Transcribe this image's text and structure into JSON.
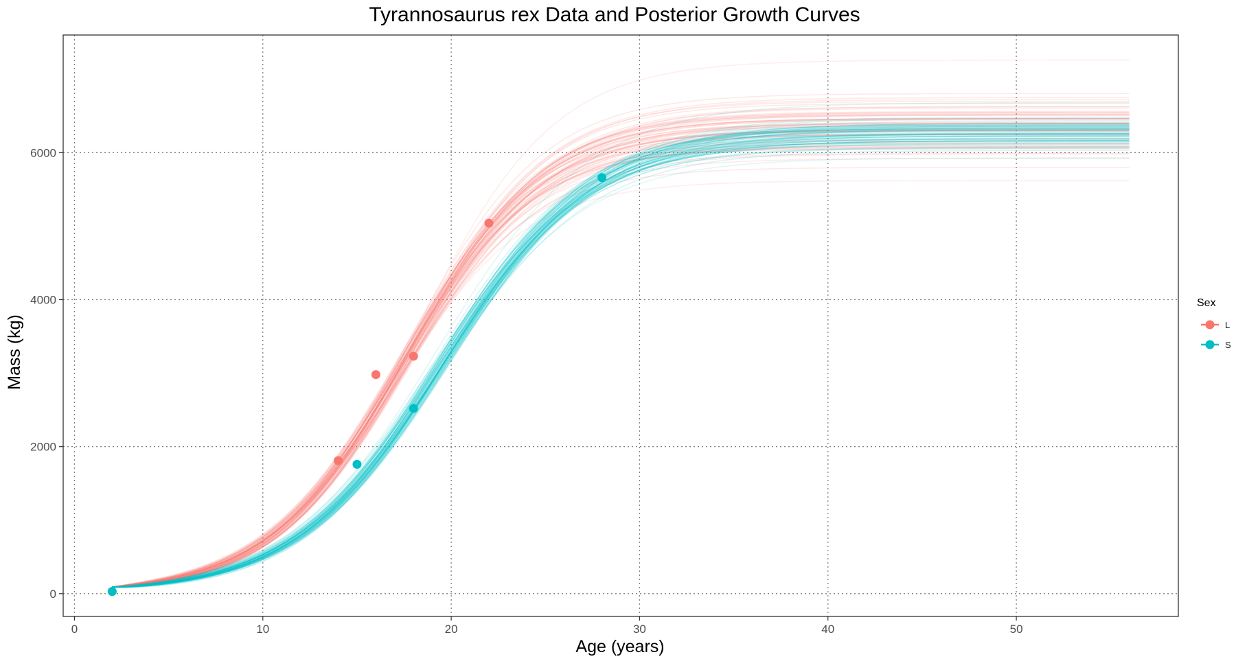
{
  "chart_data": {
    "type": "line",
    "title": "Tyrannosaurus rex Data and Posterior Growth Curves",
    "xlabel": "Age (years)",
    "ylabel": "Mass (kg)",
    "xlim": [
      -0.6,
      58.6
    ],
    "ylim": [
      -310,
      7600
    ],
    "x_ticks": [
      0,
      10,
      20,
      30,
      40,
      50
    ],
    "y_ticks": [
      0,
      2000,
      4000,
      6000
    ],
    "grid": true,
    "legend": {
      "title": "Sex",
      "placement": "right",
      "entries": [
        {
          "label": "L",
          "color": "#F8766D"
        },
        {
          "label": "S",
          "color": "#00BFC4"
        }
      ]
    },
    "series": [
      {
        "name": "L",
        "color": "#F8766D",
        "points": [
          {
            "age": 2,
            "mass": 30
          },
          {
            "age": 14,
            "mass": 1810
          },
          {
            "age": 16,
            "mass": 2980
          },
          {
            "age": 18,
            "mass": 3230
          },
          {
            "age": 22,
            "mass": 5040
          }
        ],
        "posterior_curves": {
          "age_range": [
            2,
            56
          ],
          "asymptote_mass_min": 5620,
          "asymptote_mass_max": 7260,
          "asymptote_mass_median": 6350,
          "inflection_age": 17.5,
          "growth_rate": 0.275,
          "mass_at_age_2": 90,
          "curve_count": 60
        }
      },
      {
        "name": "S",
        "color": "#00BFC4",
        "points": [
          {
            "age": 2,
            "mass": 30
          },
          {
            "age": 15,
            "mass": 1760
          },
          {
            "age": 18,
            "mass": 2520
          },
          {
            "age": 28,
            "mass": 5660
          }
        ],
        "posterior_curves": {
          "age_range": [
            2,
            56
          ],
          "asymptote_mass_min": 5930,
          "asymptote_mass_max": 6680,
          "asymptote_mass_median": 6280,
          "inflection_age": 19.5,
          "growth_rate": 0.255,
          "mass_at_age_2": 90,
          "curve_count": 60
        }
      }
    ]
  }
}
